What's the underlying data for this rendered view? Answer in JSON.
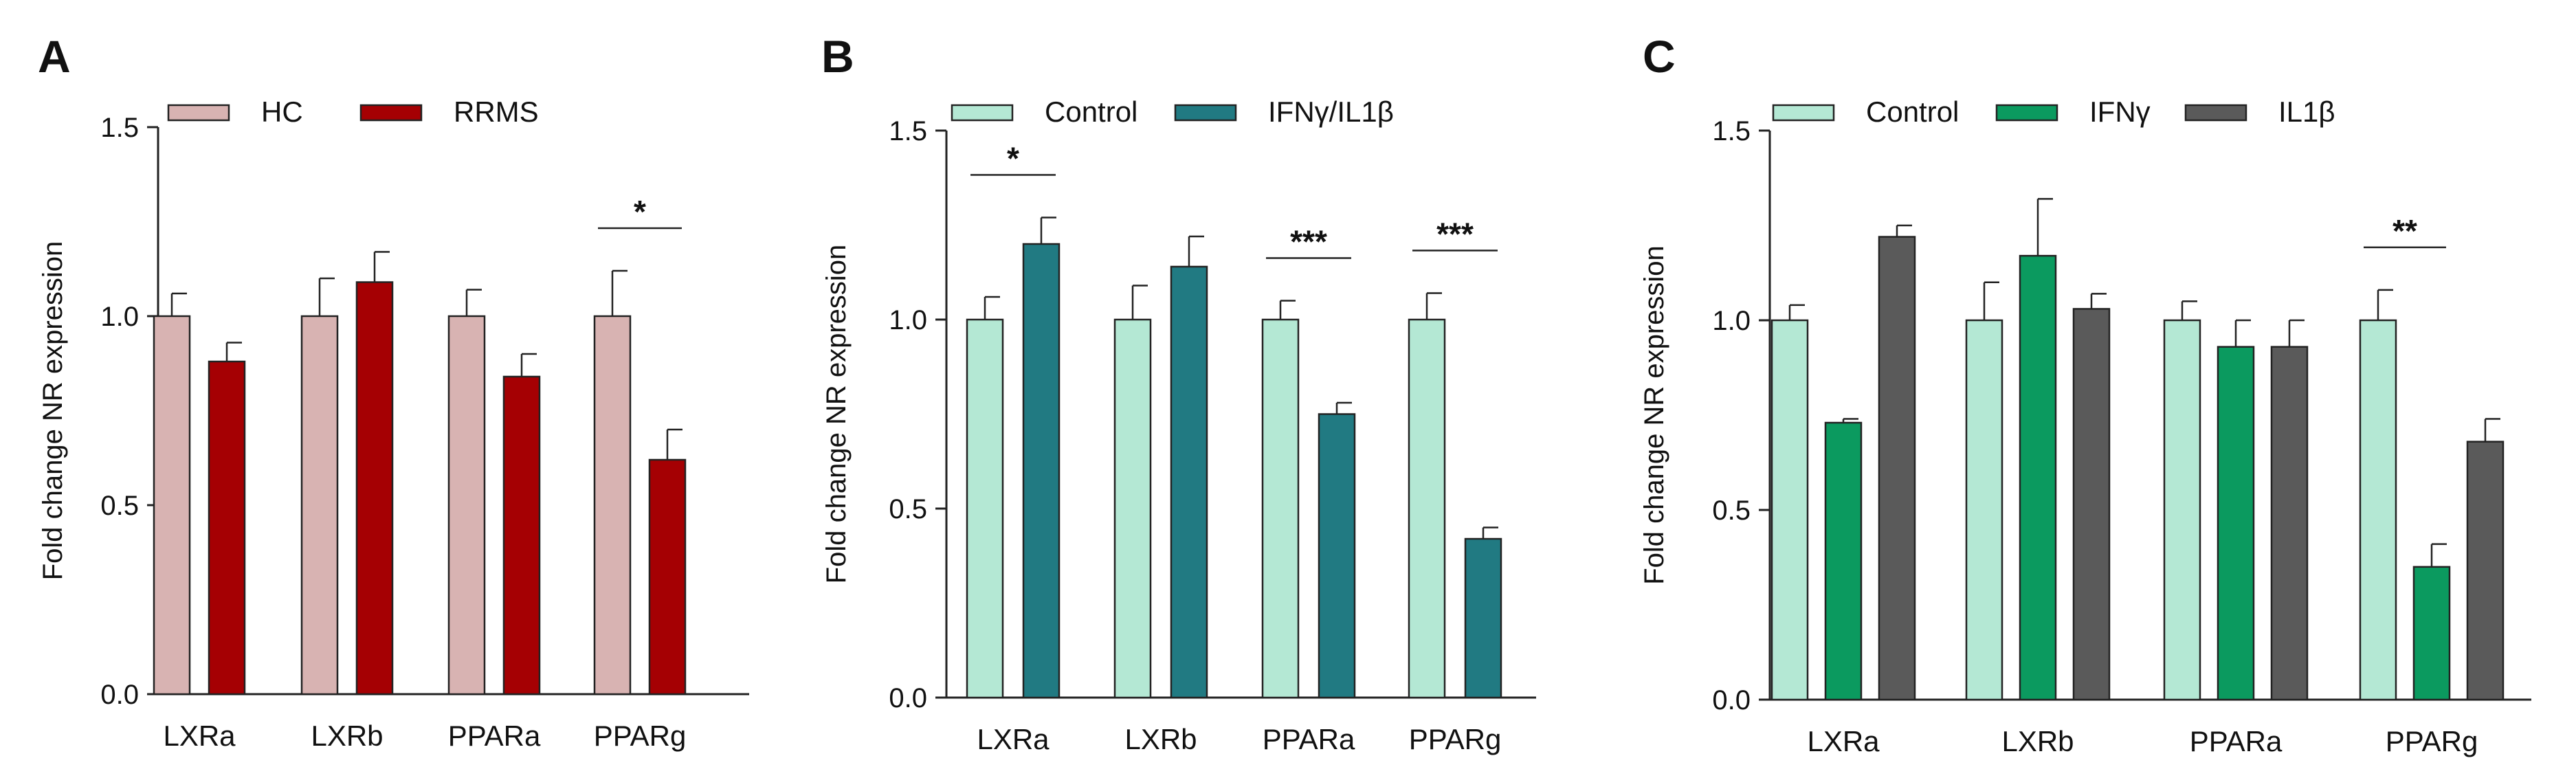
{
  "chart_data": [
    {
      "type": "bar",
      "panel_label": "A",
      "categories": [
        "LXRa",
        "LXRb",
        "PPARa",
        "PPARg"
      ],
      "series": [
        {
          "name": "HC",
          "color": "#d8b3b2",
          "values": [
            1.0,
            1.0,
            1.0,
            1.0
          ],
          "errors": [
            0.06,
            0.1,
            0.07,
            0.12
          ]
        },
        {
          "name": "RRMS",
          "color": "#a50003",
          "values": [
            0.88,
            1.09,
            0.84,
            0.62
          ],
          "errors": [
            0.05,
            0.08,
            0.06,
            0.08
          ]
        }
      ],
      "ylabel": "Fold change NR expression",
      "ylim": [
        0,
        1.5
      ],
      "yticks": [
        "0.0",
        "0.5",
        "1.0",
        "1.5"
      ],
      "significance": [
        {
          "category": "PPARg",
          "label": "*",
          "series": [
            0,
            1
          ]
        }
      ],
      "legend_position": "top"
    },
    {
      "type": "bar",
      "panel_label": "B",
      "categories": [
        "LXRa",
        "LXRb",
        "PPARa",
        "PPARg"
      ],
      "series": [
        {
          "name": "Control",
          "color": "#b4e8d4",
          "values": [
            1.0,
            1.0,
            1.0,
            1.0
          ],
          "errors": [
            0.06,
            0.09,
            0.05,
            0.07
          ]
        },
        {
          "name": "IFNγ/IL1β",
          "color": "#217a82",
          "values": [
            1.2,
            1.14,
            0.75,
            0.42
          ],
          "errors": [
            0.07,
            0.08,
            0.03,
            0.03
          ]
        }
      ],
      "ylabel": "Fold change NR expression",
      "ylim": [
        0,
        1.5
      ],
      "yticks": [
        "0.0",
        "0.5",
        "1.0",
        "1.5"
      ],
      "significance": [
        {
          "category": "LXRa",
          "label": "*",
          "series": [
            0,
            1
          ]
        },
        {
          "category": "PPARa",
          "label": "***",
          "series": [
            0,
            1
          ]
        },
        {
          "category": "PPARg",
          "label": "***",
          "series": [
            0,
            1
          ]
        }
      ],
      "legend_position": "top"
    },
    {
      "type": "bar",
      "panel_label": "C",
      "categories": [
        "LXRa",
        "LXRb",
        "PPARa",
        "PPARg"
      ],
      "series": [
        {
          "name": "Control",
          "color": "#b4e8d4",
          "values": [
            1.0,
            1.0,
            1.0,
            1.0
          ],
          "errors": [
            0.04,
            0.1,
            0.05,
            0.08
          ]
        },
        {
          "name": "IFNγ",
          "color": "#0b9a5f",
          "values": [
            0.73,
            1.17,
            0.93,
            0.35
          ],
          "errors": [
            0.01,
            0.15,
            0.07,
            0.06
          ]
        },
        {
          "name": "IL1β",
          "color": "#5a5a5a",
          "values": [
            1.22,
            1.03,
            0.93,
            0.68
          ],
          "errors": [
            0.03,
            0.04,
            0.07,
            0.06
          ]
        }
      ],
      "ylabel": "Fold change NR expression",
      "ylim": [
        0,
        1.5
      ],
      "yticks": [
        "0.0",
        "0.5",
        "1.0",
        "1.5"
      ],
      "significance": [
        {
          "category": "PPARg",
          "label": "**",
          "series": [
            0,
            1
          ]
        }
      ],
      "legend_position": "top"
    }
  ]
}
